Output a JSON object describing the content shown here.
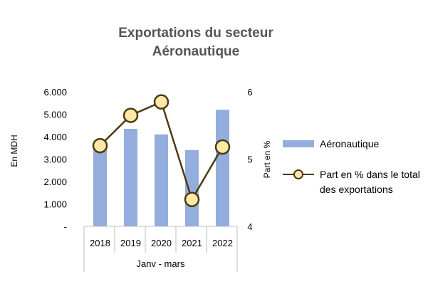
{
  "chart_data": {
    "type": "bar",
    "title": [
      "Exportations du secteur",
      "Aéronautique"
    ],
    "categories": [
      "2018",
      "2019",
      "2020",
      "2021",
      "2022"
    ],
    "category_group_label": "Janv - mars",
    "ylabel": "En MDH",
    "y2label": "Part en %",
    "ylim": [
      0,
      6000
    ],
    "y2lim": [
      4,
      6
    ],
    "y_tick_labels": [
      "-",
      "1.000",
      "2.000",
      "3.000",
      "4.000",
      "5.000",
      "6.000"
    ],
    "y2_tick_labels": [
      "4",
      "5",
      "6"
    ],
    "series": [
      {
        "name": "Aéronautique",
        "type": "bar",
        "axis": "left",
        "values": [
          3700,
          4350,
          4100,
          3400,
          5200
        ],
        "color": "#93aedc"
      },
      {
        "name": "Part en % dans le total des exportations",
        "type": "line",
        "axis": "right",
        "values": [
          5.2,
          5.65,
          5.85,
          4.4,
          5.18
        ],
        "color": "#4d3a12",
        "marker_fill": "#fce9a8"
      }
    ],
    "legend": {
      "placement": "right",
      "items": [
        {
          "lines": [
            "Aéronautique"
          ]
        },
        {
          "lines": [
            "Part en % dans le total",
            "des exportations"
          ]
        }
      ]
    },
    "grid": false
  }
}
